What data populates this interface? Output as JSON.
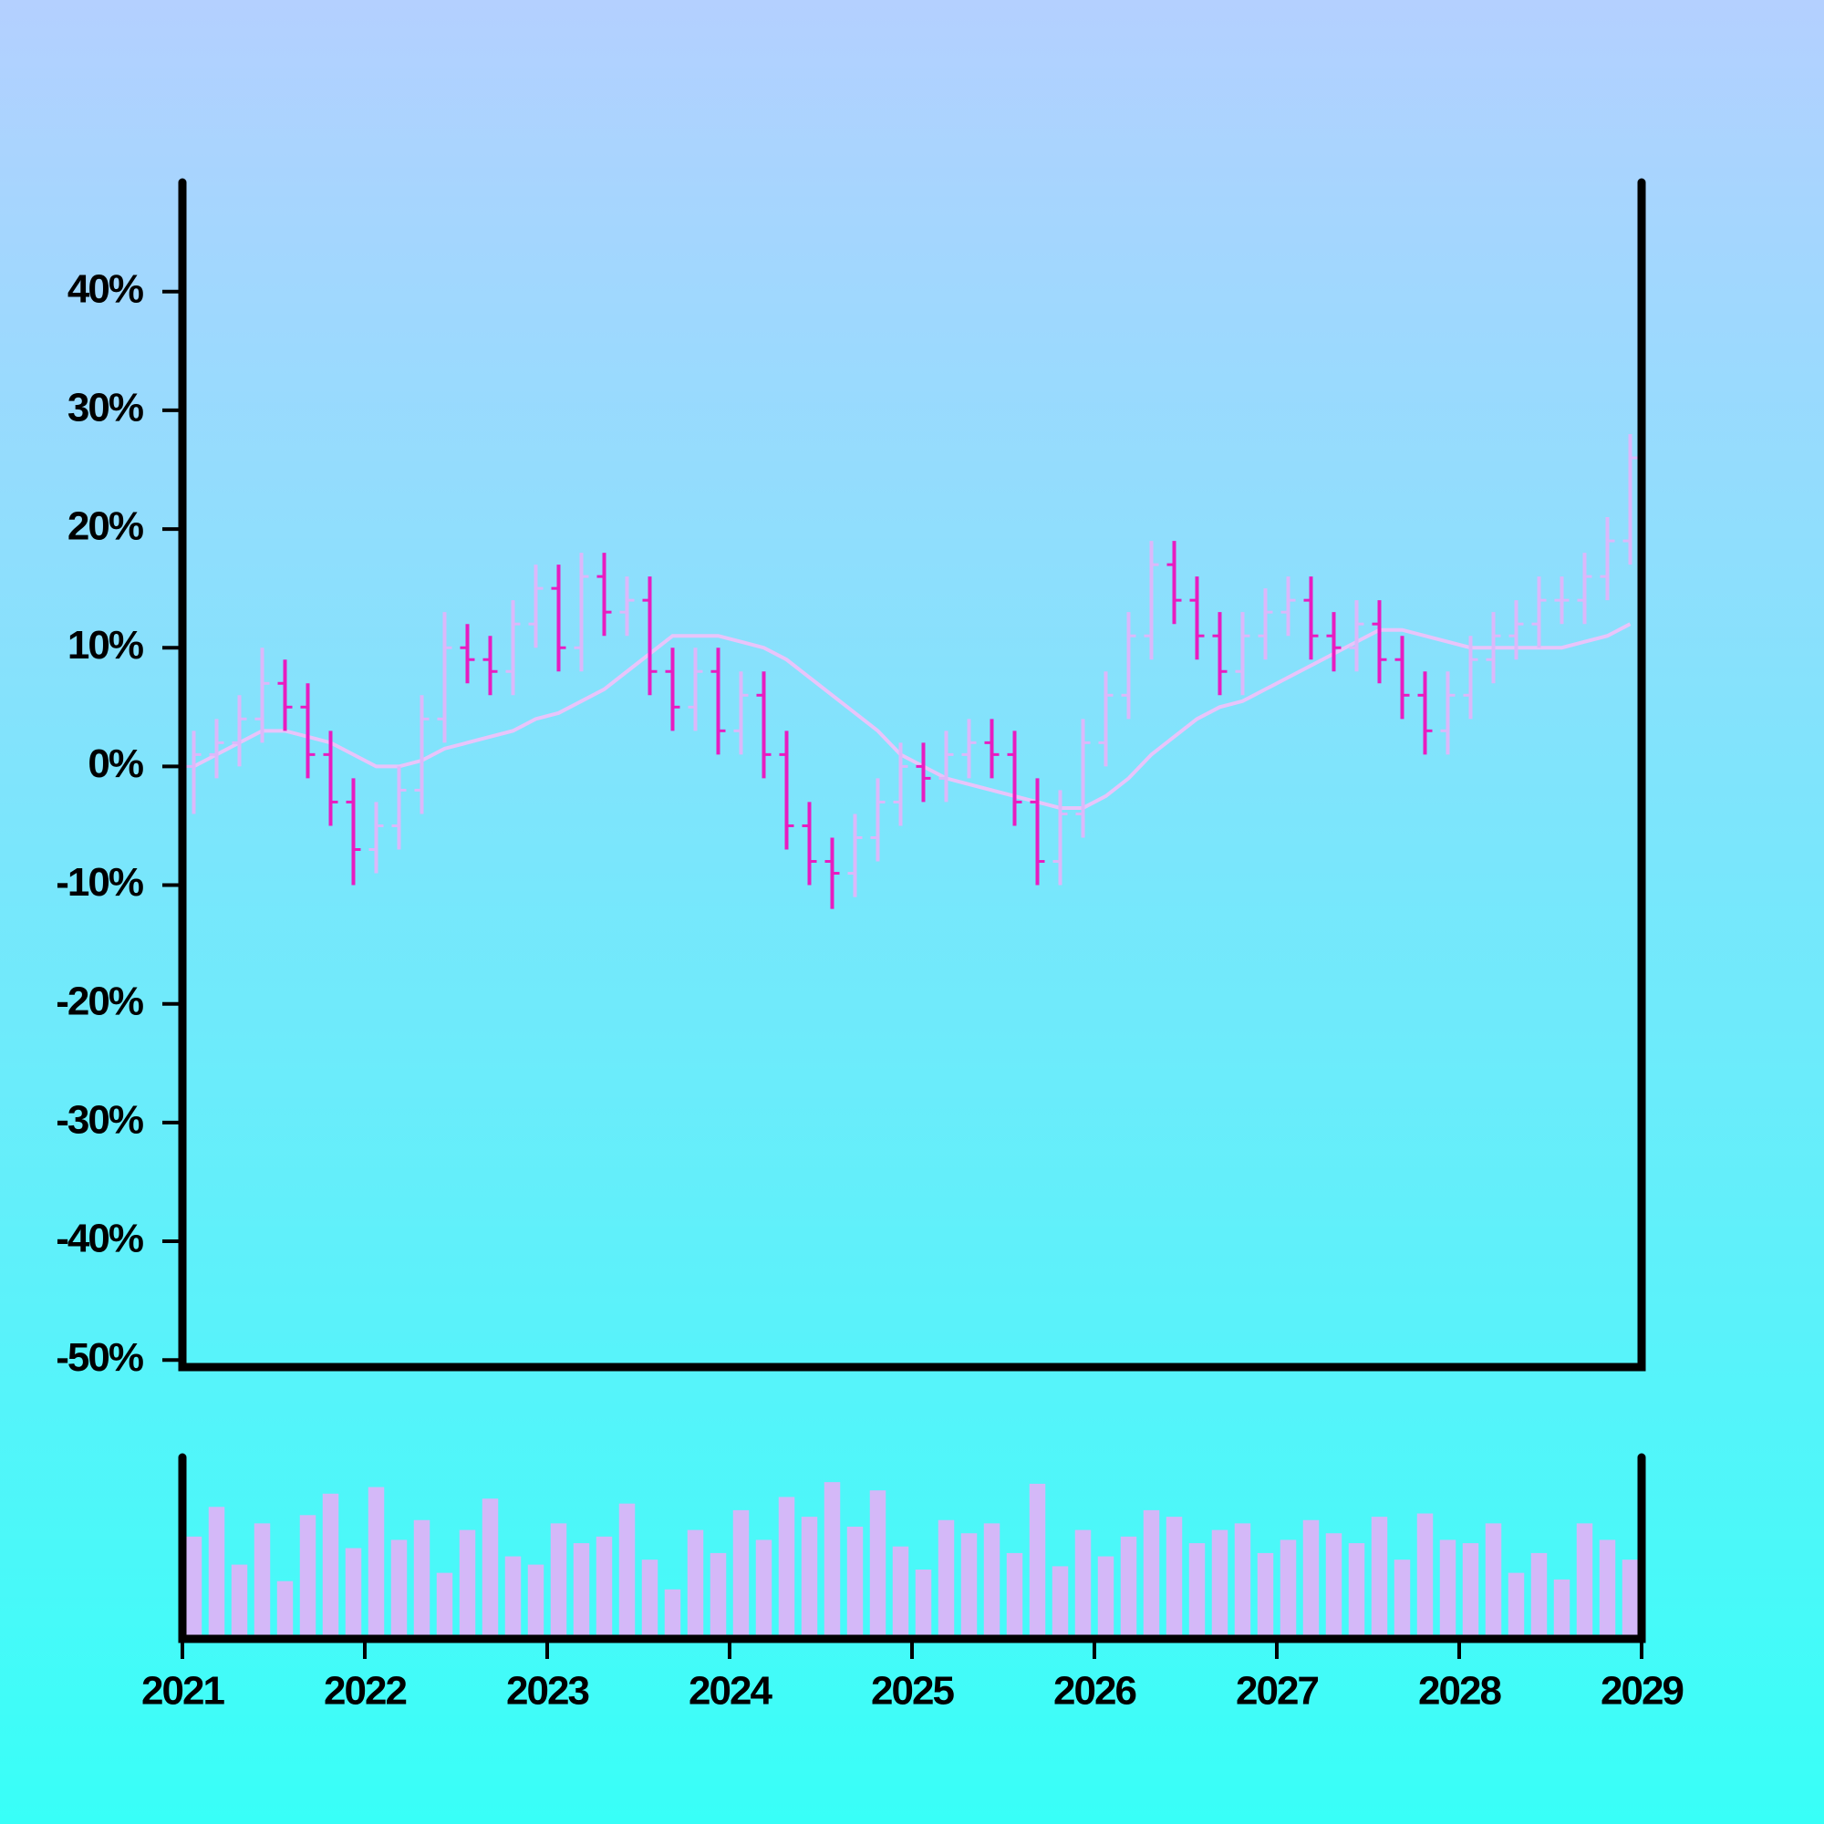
{
  "chart_data": {
    "type": "ohlc",
    "x": [
      2021.0625,
      2021.1875,
      2021.3125,
      2021.4375,
      2021.5625,
      2021.6875,
      2021.8125,
      2021.9375,
      2022.0625,
      2022.1875,
      2022.3125,
      2022.4375,
      2022.5625,
      2022.6875,
      2022.8125,
      2022.9375,
      2023.0625,
      2023.1875,
      2023.3125,
      2023.4375,
      2023.5625,
      2023.6875,
      2023.8125,
      2023.9375,
      2024.0625,
      2024.1875,
      2024.3125,
      2024.4375,
      2024.5625,
      2024.6875,
      2024.8125,
      2024.9375,
      2025.0625,
      2025.1875,
      2025.3125,
      2025.4375,
      2025.5625,
      2025.6875,
      2025.8125,
      2025.9375,
      2026.0625,
      2026.1875,
      2026.3125,
      2026.4375,
      2026.5625,
      2026.6875,
      2026.8125,
      2026.9375,
      2027.0625,
      2027.1875,
      2027.3125,
      2027.4375,
      2027.5625,
      2027.6875,
      2027.8125,
      2027.9375,
      2028.0625,
      2028.1875,
      2028.3125,
      2028.4375,
      2028.5625,
      2028.6875,
      2028.8125,
      2028.9375
    ],
    "open": [
      0,
      1,
      2,
      4,
      7,
      5,
      1,
      -3,
      -7,
      -5,
      -2,
      4,
      10,
      9,
      8,
      12,
      15,
      10,
      16,
      13,
      14,
      8,
      5,
      8,
      3,
      6,
      1,
      -5,
      -8,
      -9,
      -6,
      -3,
      0,
      -1,
      1,
      2,
      1,
      -3,
      -8,
      -4,
      2,
      6,
      11,
      17,
      14,
      11,
      8,
      11,
      13,
      14,
      11,
      10,
      12,
      9,
      6,
      3,
      6,
      9,
      11,
      12,
      14,
      14,
      16,
      19
    ],
    "high": [
      3,
      4,
      6,
      10,
      9,
      7,
      3,
      -1,
      -3,
      0,
      6,
      13,
      12,
      11,
      14,
      17,
      17,
      18,
      18,
      16,
      16,
      10,
      10,
      10,
      8,
      8,
      3,
      -3,
      -6,
      -4,
      -1,
      2,
      2,
      3,
      4,
      4,
      3,
      -1,
      -2,
      4,
      8,
      13,
      19,
      19,
      16,
      13,
      13,
      15,
      16,
      16,
      13,
      14,
      14,
      11,
      8,
      8,
      11,
      13,
      14,
      16,
      16,
      18,
      21,
      28
    ],
    "low": [
      -4,
      -1,
      0,
      2,
      3,
      -1,
      -5,
      -10,
      -9,
      -7,
      -4,
      2,
      7,
      6,
      6,
      10,
      8,
      8,
      11,
      11,
      6,
      3,
      3,
      1,
      1,
      -1,
      -7,
      -10,
      -12,
      -11,
      -8,
      -5,
      -3,
      -3,
      -1,
      -1,
      -5,
      -10,
      -10,
      -6,
      0,
      4,
      9,
      12,
      9,
      6,
      6,
      9,
      11,
      9,
      8,
      8,
      7,
      4,
      1,
      1,
      4,
      7,
      9,
      10,
      12,
      12,
      14,
      17
    ],
    "close": [
      1,
      2,
      4,
      7,
      5,
      1,
      -3,
      -7,
      -5,
      -2,
      4,
      10,
      9,
      8,
      12,
      15,
      10,
      16,
      13,
      14,
      8,
      5,
      8,
      3,
      6,
      1,
      -5,
      -8,
      -9,
      -6,
      -3,
      0,
      -1,
      1,
      2,
      1,
      -3,
      -8,
      -4,
      2,
      6,
      11,
      17,
      14,
      11,
      8,
      11,
      13,
      14,
      11,
      10,
      12,
      9,
      6,
      3,
      6,
      9,
      11,
      12,
      14,
      14,
      16,
      19,
      26
    ],
    "moving_average": [
      0,
      1,
      2,
      3,
      3,
      2.5,
      2,
      1,
      0,
      0,
      0.5,
      1.5,
      2,
      2.5,
      3,
      4,
      4.5,
      5.5,
      6.5,
      8,
      9.5,
      11,
      11,
      11,
      10.5,
      10,
      9,
      7.5,
      6,
      4.5,
      3,
      1,
      0,
      -1,
      -1.5,
      -2,
      -2.5,
      -3,
      -3.5,
      -3.5,
      -2.5,
      -1,
      1,
      2.5,
      4,
      5,
      5.5,
      6.5,
      7.5,
      8.5,
      9.5,
      10.5,
      11.5,
      11.5,
      11,
      10.5,
      10,
      10,
      10,
      10,
      10,
      10.5,
      11,
      12
    ],
    "volume": [
      62,
      80,
      45,
      70,
      35,
      75,
      88,
      55,
      92,
      60,
      72,
      40,
      66,
      85,
      50,
      45,
      70,
      58,
      62,
      82,
      48,
      30,
      66,
      52,
      78,
      60,
      86,
      74,
      95,
      68,
      90,
      56,
      42,
      72,
      64,
      70,
      52,
      94,
      44,
      66,
      50,
      62,
      78,
      74,
      58,
      66,
      70,
      52,
      60,
      72,
      64,
      58,
      74,
      48,
      76,
      60,
      58,
      70,
      40,
      52,
      36,
      70,
      60,
      48
    ],
    "up_color": "#dcb8fa",
    "down_color": "#e81cc0",
    "ma_color": "#e8c4fa",
    "volume_color": "#d4b8f8",
    "xlim": [
      2021,
      2029
    ],
    "xticks": [
      2021,
      2022,
      2023,
      2024,
      2025,
      2026,
      2027,
      2028,
      2029
    ],
    "ylim": [
      -50.6,
      49.2
    ],
    "yticks": [
      {
        "value": -50,
        "label": "-50%"
      },
      {
        "value": -40,
        "label": "-40%"
      },
      {
        "value": -30,
        "label": "-30%"
      },
      {
        "value": -20,
        "label": "-20%"
      },
      {
        "value": -10,
        "label": "-10%"
      },
      {
        "value": 0,
        "label": "0%"
      },
      {
        "value": 10,
        "label": "10%"
      },
      {
        "value": 20,
        "label": "20%"
      },
      {
        "value": 30,
        "label": "30%"
      },
      {
        "value": 40,
        "label": "40%"
      }
    ],
    "volume_ylim": [
      0,
      110
    ]
  }
}
